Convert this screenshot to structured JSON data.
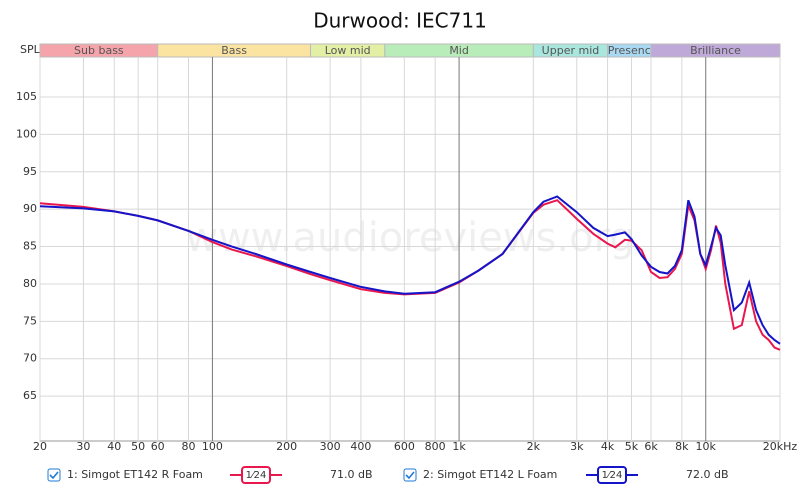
{
  "chart_data": {
    "type": "line",
    "title": "Durwood: IEC711",
    "y_label": "SPL",
    "watermark": "www.audioreviews.org",
    "log_x": true,
    "grid": true,
    "xlim": [
      20,
      20000
    ],
    "ylim": [
      59,
      110
    ],
    "xticks": [
      20,
      30,
      40,
      50,
      60,
      80,
      100,
      200,
      300,
      400,
      600,
      800,
      {
        "value": 1000,
        "label": "1k"
      },
      {
        "value": 2000,
        "label": "2k"
      },
      {
        "value": 3000,
        "label": "3k"
      },
      {
        "value": 4000,
        "label": "4k"
      },
      {
        "value": 5000,
        "label": "5k"
      },
      {
        "value": 6000,
        "label": "6k"
      },
      {
        "value": 8000,
        "label": "8k"
      },
      {
        "value": 10000,
        "label": "10k"
      },
      {
        "value": 20000,
        "label": "20kHz"
      }
    ],
    "yticks": [
      65,
      70,
      75,
      80,
      85,
      90,
      95,
      100,
      105
    ],
    "bands": [
      {
        "name": "Sub bass",
        "range": [
          20,
          60
        ],
        "color": "#f4a4aa"
      },
      {
        "name": "Bass",
        "range": [
          60,
          250
        ],
        "color": "#fbe3a2"
      },
      {
        "name": "Low mid",
        "range": [
          250,
          500
        ],
        "color": "#e4efa6"
      },
      {
        "name": "Mid",
        "range": [
          500,
          2000
        ],
        "color": "#b8ecb8"
      },
      {
        "name": "Upper mid",
        "range": [
          2000,
          4000
        ],
        "color": "#a9e7de"
      },
      {
        "name": "Presenc",
        "range": [
          4000,
          6000
        ],
        "color": "#a9d9f2"
      },
      {
        "name": "Brilliance",
        "range": [
          6000,
          20000
        ],
        "color": "#bfa9d9"
      }
    ],
    "x": [
      20,
      30,
      40,
      50,
      60,
      80,
      100,
      120,
      150,
      200,
      250,
      300,
      400,
      500,
      600,
      800,
      1000,
      1200,
      1500,
      2000,
      2200,
      2500,
      3000,
      3500,
      4000,
      4300,
      4700,
      5000,
      5500,
      6000,
      6500,
      7000,
      7500,
      8000,
      8500,
      9000,
      9500,
      10000,
      10500,
      11000,
      11500,
      12000,
      13000,
      14000,
      15000,
      16000,
      17000,
      18000,
      19000,
      20000
    ],
    "series": [
      {
        "name": "1: Simgot ET142 R Foam",
        "color": "#e8174e",
        "smoothing": "1⁄24",
        "level": "71.0 dB",
        "values": [
          90.8,
          90.3,
          89.7,
          89.1,
          88.5,
          87.1,
          85.6,
          84.6,
          83.7,
          82.4,
          81.3,
          80.5,
          79.3,
          78.8,
          78.6,
          78.8,
          80.2,
          81.8,
          84.0,
          89.5,
          90.6,
          91.2,
          88.7,
          86.7,
          85.4,
          84.9,
          85.9,
          85.8,
          84.5,
          81.6,
          80.8,
          80.9,
          82.0,
          84.0,
          90.5,
          88.5,
          84.0,
          82.0,
          84.5,
          87.8,
          85.5,
          80.0,
          74.0,
          74.5,
          79.0,
          75.0,
          73.2,
          72.5,
          71.5,
          71.2
        ]
      },
      {
        "name": "2: Simgot ET142 L Foam",
        "color": "#1414c8",
        "smoothing": "1⁄24",
        "level": "72.0 dB",
        "values": [
          90.4,
          90.1,
          89.7,
          89.1,
          88.5,
          87.1,
          85.9,
          85.0,
          84.0,
          82.6,
          81.6,
          80.8,
          79.6,
          79.0,
          78.7,
          78.9,
          80.3,
          81.8,
          84.0,
          89.6,
          91.0,
          91.7,
          89.6,
          87.5,
          86.4,
          86.6,
          86.9,
          86.0,
          83.8,
          82.3,
          81.6,
          81.4,
          82.4,
          84.5,
          91.2,
          89.0,
          84.0,
          82.5,
          85.0,
          87.5,
          86.5,
          82.5,
          76.5,
          77.5,
          80.2,
          76.5,
          74.5,
          73.2,
          72.5,
          72.0
        ]
      }
    ]
  }
}
